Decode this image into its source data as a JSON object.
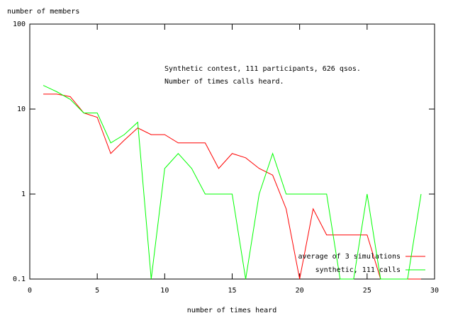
{
  "chart_data": {
    "type": "line",
    "ylabel": "number of members",
    "xlabel": "number of times heard",
    "annotations": [
      "Synthetic contest, 111 participants, 626 qsos.",
      "Number of times calls heard."
    ],
    "x": [
      1,
      2,
      3,
      4,
      5,
      6,
      7,
      8,
      9,
      10,
      11,
      12,
      13,
      14,
      15,
      16,
      17,
      18,
      19,
      20,
      21,
      22,
      23,
      24,
      25,
      26,
      27,
      28,
      29
    ],
    "series": [
      {
        "name": "average of 3 simulations",
        "color": "#ff0000",
        "values": [
          15,
          15,
          14,
          9,
          8,
          3,
          4.3,
          6,
          5,
          5,
          4,
          4,
          4,
          2,
          3,
          2.67,
          2,
          1.67,
          0.67,
          0.1,
          0.67,
          0.33,
          0.33,
          0.33,
          0.33,
          0.1,
          0.1,
          0.1,
          0.1
        ]
      },
      {
        "name": "synthetic, 111 calls",
        "color": "#00ff00",
        "values": [
          19,
          16,
          13,
          9,
          9,
          4,
          5,
          7,
          0.1,
          2,
          3,
          2,
          1,
          1,
          1,
          0.1,
          1,
          3,
          1,
          1,
          1,
          1,
          0.1,
          0.1,
          1,
          0.1,
          0.1,
          0.1,
          1
        ]
      }
    ],
    "xlim": [
      0,
      30
    ],
    "xticks": [
      0,
      5,
      10,
      15,
      20,
      25,
      30
    ],
    "ylim": [
      0.1,
      100
    ],
    "yticks": [
      0.1,
      1,
      10,
      100
    ],
    "log_y": true,
    "grid": false,
    "legend": "bottom-right"
  }
}
